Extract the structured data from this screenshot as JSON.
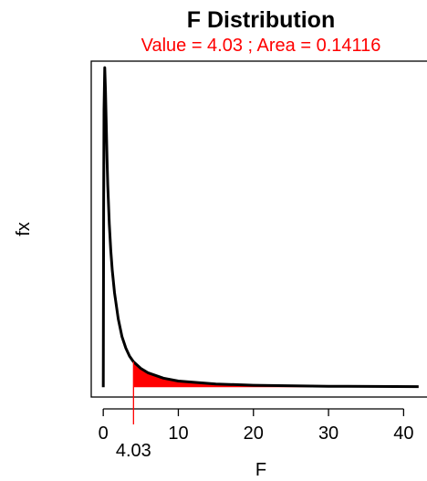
{
  "chart_data": {
    "type": "line",
    "title": "F Distribution",
    "subtitle": "Value = 4.03 ; Area = 0.14116",
    "xlabel": "F",
    "ylabel": "fx",
    "xlim": [
      -1.6,
      43.6
    ],
    "ylim": [
      -0.03,
      1.0
    ],
    "x_ticks": [
      0,
      10,
      20,
      30,
      40
    ],
    "x_tick_labels": [
      "0",
      "10",
      "20",
      "30",
      "40"
    ],
    "marker": {
      "value": 4.03,
      "label": "4.03"
    },
    "shaded_area": {
      "from": 4.03,
      "to": 42,
      "area": 0.14116
    },
    "curve": {
      "x": [
        0.001,
        0.05,
        0.1,
        0.2,
        0.3,
        0.4,
        0.5,
        0.6,
        0.8,
        1.0,
        1.2,
        1.5,
        2.0,
        2.5,
        3.0,
        3.5,
        4.03,
        5,
        6,
        8,
        10,
        15,
        20,
        30,
        42
      ],
      "y": [
        0.0,
        0.55,
        0.85,
        0.98,
        0.91,
        0.8,
        0.7,
        0.62,
        0.5,
        0.42,
        0.36,
        0.29,
        0.21,
        0.155,
        0.12,
        0.095,
        0.078,
        0.058,
        0.044,
        0.028,
        0.019,
        0.01,
        0.006,
        0.003,
        0.002
      ]
    },
    "grid": false,
    "legend": "none",
    "colors": {
      "curve": "#000000",
      "highlight": "#ff0000"
    }
  }
}
